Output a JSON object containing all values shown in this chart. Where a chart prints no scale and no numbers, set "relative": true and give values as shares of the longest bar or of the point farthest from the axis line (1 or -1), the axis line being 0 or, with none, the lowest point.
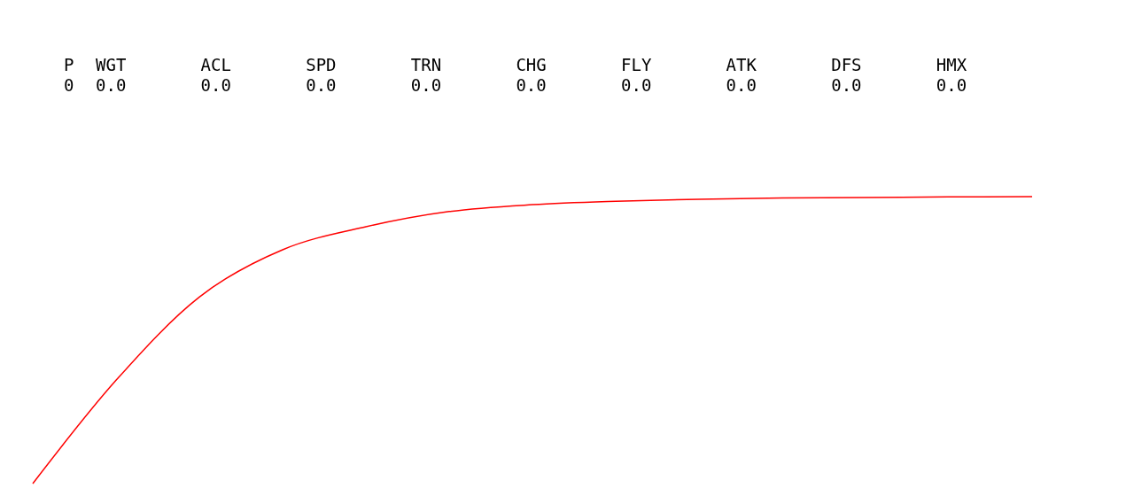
{
  "chart_data": {
    "type": "line",
    "relative": true,
    "categories": [
      null,
      null,
      null,
      null,
      null,
      null,
      null,
      null,
      null,
      null,
      null,
      null,
      null
    ],
    "series": [
      {
        "color": "#ff0000",
        "values": [
          0,
          0.36,
          0.65,
          0.815,
          0.895,
          0.948,
          0.972,
          0.984,
          0.991,
          0.995,
          0.997,
          0.999,
          1
        ]
      }
    ],
    "annotations": [
      "P",
      "0",
      "WGT",
      "0.0",
      "ACL",
      "0.0",
      "SPD",
      "0.0",
      "TRN",
      "0.0",
      "CHG",
      "0.0",
      "FLY",
      "0.0",
      "ATK",
      "0.0",
      "DFS",
      "0.0",
      "HMX",
      "0.0"
    ]
  }
}
